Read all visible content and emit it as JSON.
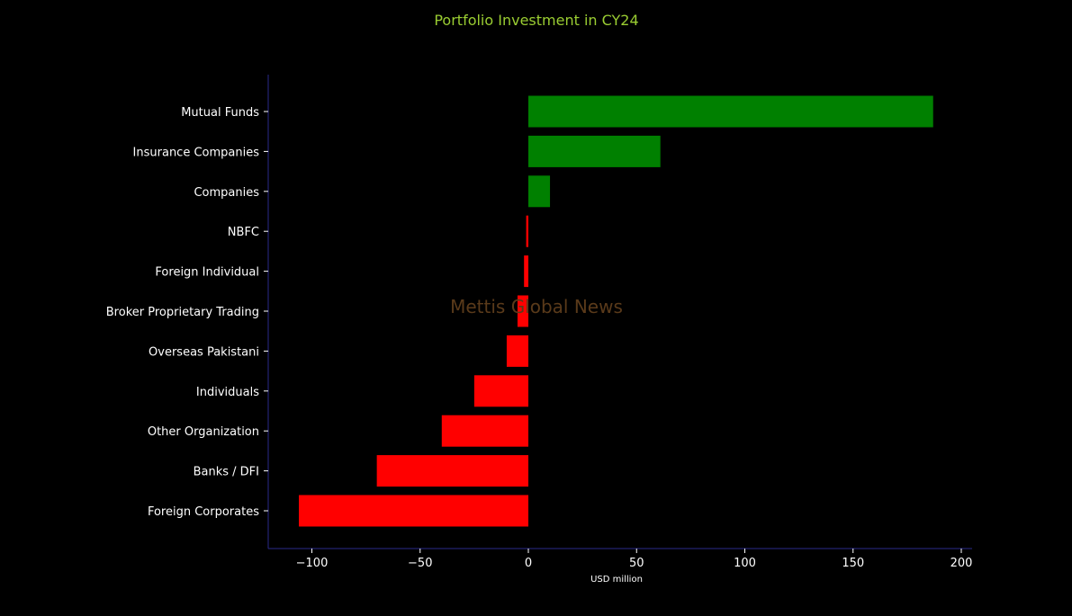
{
  "chart_data": {
    "type": "bar",
    "orientation": "horizontal",
    "title": "Portfolio Investment in CY24",
    "xlabel": "USD million",
    "ylabel": "",
    "watermark": "Mettis Global News",
    "categories": [
      "Mutual Funds",
      "Insurance Companies",
      "Companies",
      "NBFC",
      "Foreign Individual",
      "Broker Proprietary Trading",
      "Overseas Pakistani",
      "Individuals",
      "Other Organization",
      "Banks / DFI",
      "Foreign Corporates "
    ],
    "values": [
      187,
      61,
      10,
      -1,
      -2,
      -5,
      -10,
      -25,
      -40,
      -70,
      -106
    ],
    "xlim": [
      -120,
      200
    ],
    "xticks": [
      -100,
      -50,
      0,
      50,
      100,
      150,
      200
    ],
    "xtick_labels": [
      "−100",
      "−50",
      "0",
      "50",
      "100",
      "150",
      "200"
    ],
    "grid": false,
    "legend": "none",
    "colors": {
      "positive": "#008000",
      "negative": "#ff0000",
      "title": "#9acd32",
      "watermark": "#5a3a1a",
      "axis_line": "#2a2a8a",
      "background": "#000000",
      "text": "#ffffff"
    }
  }
}
